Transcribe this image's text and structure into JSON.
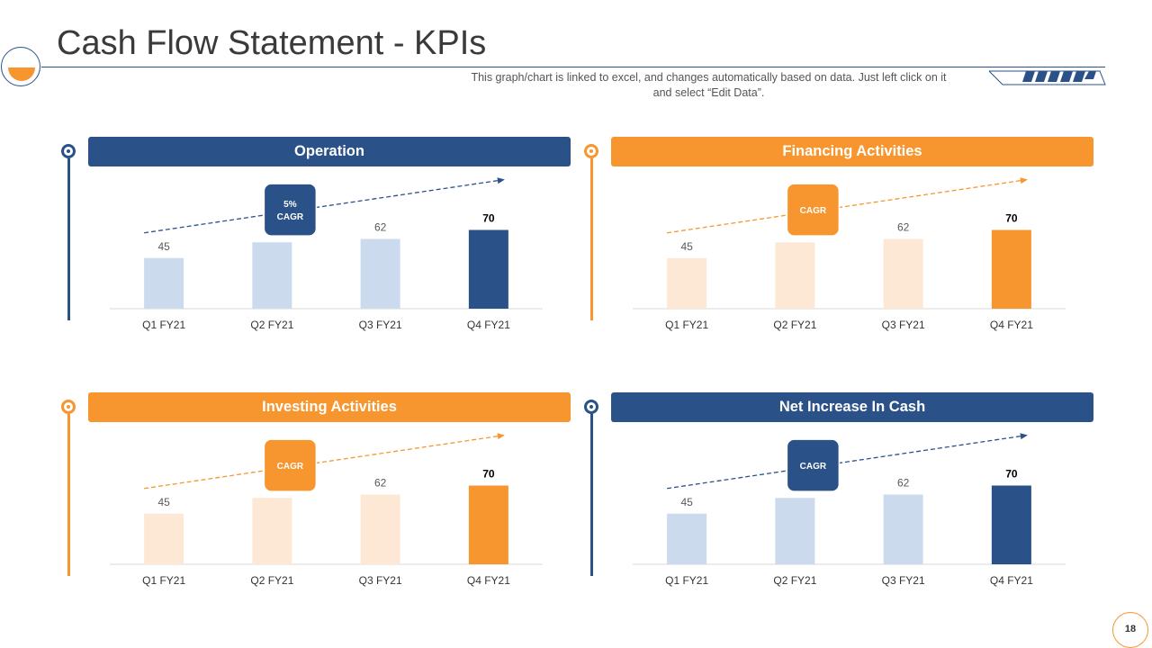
{
  "page": {
    "title": "Cash Flow Statement - KPIs",
    "subtitle_line1": "This graph/chart is linked to excel, and changes automatically based on data. Just left click on it",
    "subtitle_line2": "and select “Edit Data”.",
    "page_number": "18"
  },
  "colors": {
    "blue": "#2a5289",
    "light_blue": "#ccdaee",
    "orange": "#f7962f",
    "light_orange": "#fde8d6"
  },
  "chart_data": [
    {
      "type": "bar",
      "title": "Operation",
      "theme": "blue",
      "categories": [
        "Q1 FY21",
        "Q2 FY21",
        "Q3 FY21",
        "Q4 FY21"
      ],
      "values": [
        45,
        59,
        62,
        70
      ],
      "highlight_index": 3,
      "badge": [
        "5%",
        "CAGR"
      ],
      "ylim": [
        0,
        80
      ],
      "xlabel": "",
      "ylabel": ""
    },
    {
      "type": "bar",
      "title": "Financing Activities",
      "theme": "orange",
      "categories": [
        "Q1 FY21",
        "Q2 FY21",
        "Q3 FY21",
        "Q4 FY21"
      ],
      "values": [
        45,
        59,
        62,
        70
      ],
      "highlight_index": 3,
      "badge": [
        "CAGR"
      ],
      "ylim": [
        0,
        80
      ],
      "xlabel": "",
      "ylabel": ""
    },
    {
      "type": "bar",
      "title": "Investing Activities",
      "theme": "orange",
      "categories": [
        "Q1 FY21",
        "Q2 FY21",
        "Q3 FY21",
        "Q4 FY21"
      ],
      "values": [
        45,
        59,
        62,
        70
      ],
      "highlight_index": 3,
      "badge": [
        "CAGR"
      ],
      "ylim": [
        0,
        80
      ],
      "xlabel": "",
      "ylabel": ""
    },
    {
      "type": "bar",
      "title": "Net Increase In Cash",
      "theme": "blue",
      "categories": [
        "Q1 FY21",
        "Q2 FY21",
        "Q3 FY21",
        "Q4 FY21"
      ],
      "values": [
        45,
        59,
        62,
        70
      ],
      "highlight_index": 3,
      "badge": [
        "CAGR"
      ],
      "ylim": [
        0,
        80
      ],
      "xlabel": "",
      "ylabel": ""
    }
  ]
}
